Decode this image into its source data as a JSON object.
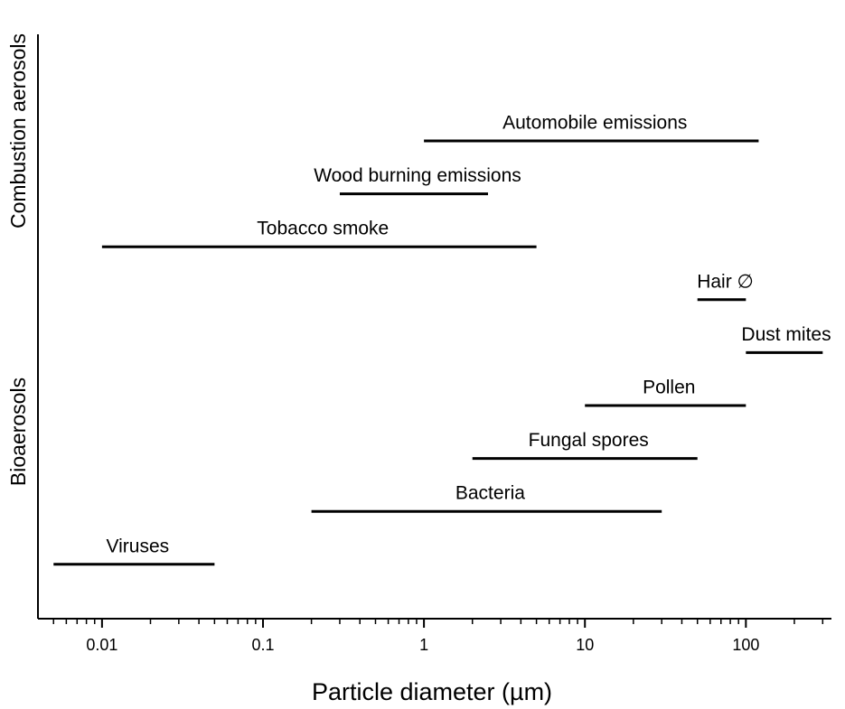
{
  "chart_data": {
    "type": "range",
    "xlabel": "Particle diameter (µm)",
    "xscale": "log",
    "xlim": [
      0.004,
      340
    ],
    "xticks": [
      0.01,
      0.1,
      1,
      10,
      100
    ],
    "xminorticks": [
      0.005,
      0.006,
      0.007,
      0.008,
      0.009,
      0.02,
      0.03,
      0.04,
      0.05,
      0.06,
      0.07,
      0.08,
      0.09,
      0.2,
      0.3,
      0.4,
      0.5,
      0.6,
      0.7,
      0.8,
      0.9,
      2,
      3,
      4,
      5,
      6,
      7,
      8,
      9,
      20,
      30,
      40,
      50,
      60,
      70,
      80,
      90,
      200,
      300
    ],
    "color": "#000000",
    "groups": [
      {
        "label": "Combustion aerosols"
      },
      {
        "label": "Bioaerosols"
      }
    ],
    "items": [
      {
        "label": "Automobile emissions",
        "low": 1,
        "high": 120
      },
      {
        "label": "Wood burning emissions",
        "low": 0.3,
        "high": 2.5
      },
      {
        "label": "Tobacco smoke",
        "low": 0.01,
        "high": 5
      },
      {
        "label": "Hair ∅",
        "low": 50,
        "high": 100
      },
      {
        "label": "Dust mites",
        "low": 100,
        "high": 300
      },
      {
        "label": "Pollen",
        "low": 10,
        "high": 100
      },
      {
        "label": "Fungal spores",
        "low": 2,
        "high": 50
      },
      {
        "label": "Bacteria",
        "low": 0.2,
        "high": 30
      },
      {
        "label": "Viruses",
        "low": 0.005,
        "high": 0.05
      }
    ]
  }
}
